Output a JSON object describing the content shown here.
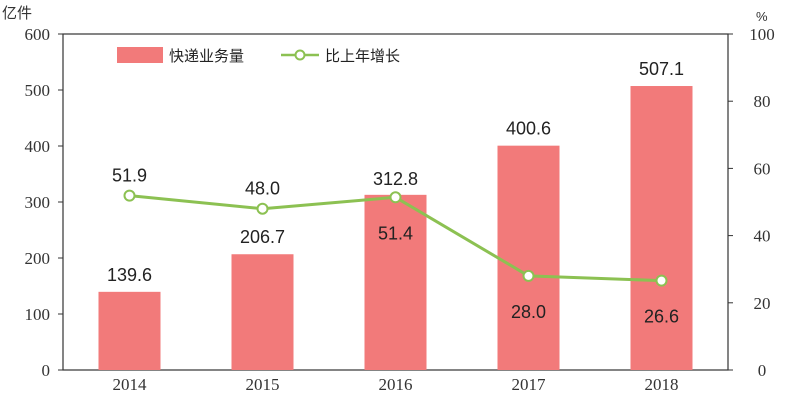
{
  "chart_data": {
    "type": "bar",
    "categories": [
      "2014",
      "2015",
      "2016",
      "2017",
      "2018"
    ],
    "series": [
      {
        "name": "快递业务量",
        "type": "bar",
        "axis": "left",
        "values": [
          139.6,
          206.7,
          312.8,
          400.6,
          507.1
        ],
        "labels": [
          "139.6",
          "206.7",
          "312.8",
          "400.6",
          "507.1"
        ],
        "color": "#f27a7a"
      },
      {
        "name": "比上年增长",
        "type": "line",
        "axis": "right",
        "values": [
          51.9,
          48.0,
          51.4,
          28.0,
          26.6
        ],
        "labels": [
          "51.9",
          "48.0",
          "51.4",
          "28.0",
          "26.6"
        ],
        "color": "#8cc152"
      }
    ],
    "y_left": {
      "unit": "亿件",
      "range": [
        0,
        600
      ],
      "ticks": [
        "0",
        "100",
        "200",
        "300",
        "400",
        "500",
        "600"
      ]
    },
    "y_right": {
      "unit": "%",
      "range": [
        0,
        100
      ],
      "ticks": [
        "0",
        "20",
        "40",
        "60",
        "80",
        "100"
      ]
    },
    "grid": false,
    "legend_position": "top-left"
  }
}
